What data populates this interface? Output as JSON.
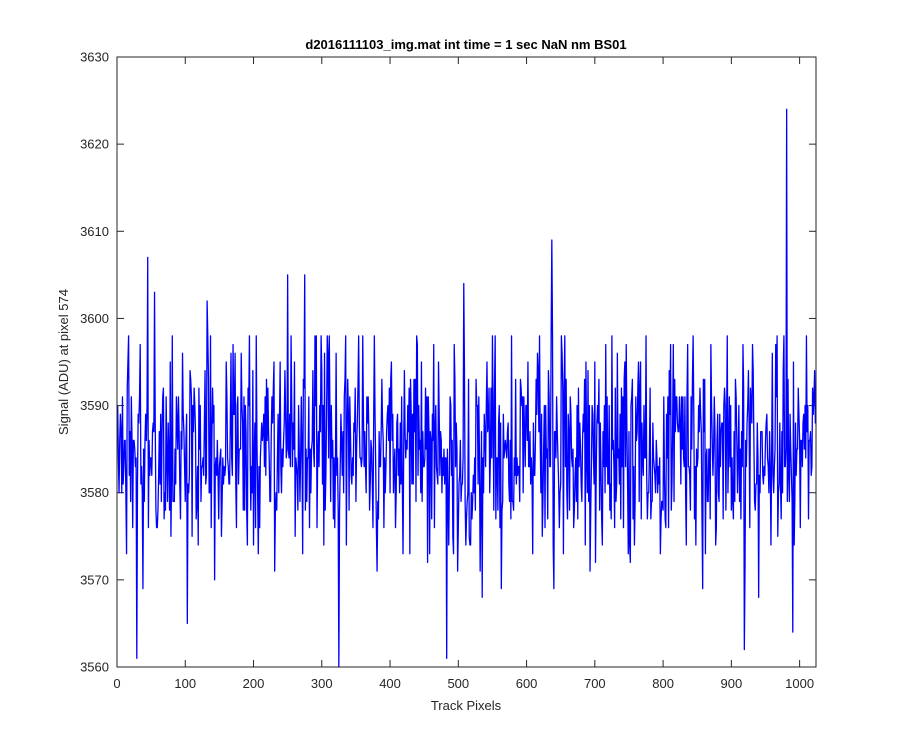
{
  "chart_data": {
    "type": "line",
    "title": "d2016111103_img.mat int time = 1 sec  NaN nm BS01",
    "xlabel": "Track Pixels",
    "ylabel": "Signal (ADU) at pixel 574",
    "xlim": [
      0,
      1024
    ],
    "ylim": [
      3560,
      3630
    ],
    "xticks": [
      0,
      100,
      200,
      300,
      400,
      500,
      600,
      700,
      800,
      900,
      1000
    ],
    "yticks": [
      3560,
      3570,
      3580,
      3590,
      3600,
      3610,
      3620,
      3630
    ],
    "grid": false,
    "line_color": "#0000ff",
    "series": [
      {
        "x_start": 1,
        "x_step": 1,
        "noise_model": {
          "mean": 3585,
          "sd": 6.2,
          "min": 3560,
          "max": 3624,
          "seed": 20161111
        },
        "key_points": [
          {
            "x": 29,
            "y": 3561
          },
          {
            "x": 45,
            "y": 3607
          },
          {
            "x": 55,
            "y": 3603
          },
          {
            "x": 103,
            "y": 3565
          },
          {
            "x": 132,
            "y": 3602
          },
          {
            "x": 250,
            "y": 3605
          },
          {
            "x": 275,
            "y": 3605
          },
          {
            "x": 325,
            "y": 3560
          },
          {
            "x": 483,
            "y": 3561
          },
          {
            "x": 508,
            "y": 3604
          },
          {
            "x": 637,
            "y": 3609
          },
          {
            "x": 919,
            "y": 3562
          },
          {
            "x": 981,
            "y": 3624
          },
          {
            "x": 990,
            "y": 3564
          }
        ]
      }
    ]
  }
}
